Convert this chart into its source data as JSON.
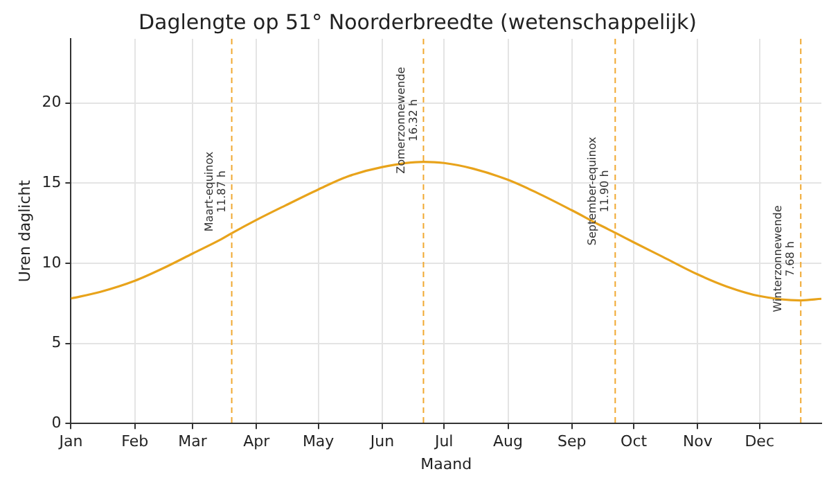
{
  "chart_data": {
    "type": "line",
    "title": "Daglengte op 51° Noorderbreedte (wetenschappelijk)",
    "xlabel": "Maand",
    "ylabel": "Uren daglicht",
    "x": [
      "--01-01",
      "--01-15",
      "--02-01",
      "--02-15",
      "--03-01",
      "--03-15",
      "--03-20",
      "--04-01",
      "--04-15",
      "--05-01",
      "--05-15",
      "--06-01",
      "--06-21",
      "--07-01",
      "--07-15",
      "--08-01",
      "--08-15",
      "--09-01",
      "--09-15",
      "--09-22",
      "--10-01",
      "--10-15",
      "--11-01",
      "--11-15",
      "--12-01",
      "--12-21",
      "--12-31"
    ],
    "series": [
      {
        "color": "#e8a31b",
        "values": [
          7.8,
          8.2,
          8.9,
          9.7,
          10.6,
          11.5,
          11.87,
          12.7,
          13.6,
          14.6,
          15.4,
          16.0,
          16.32,
          16.25,
          15.9,
          15.2,
          14.4,
          13.3,
          12.35,
          11.9,
          11.3,
          10.4,
          9.3,
          8.55,
          7.95,
          7.68,
          7.78
        ]
      }
    ],
    "xlim": [
      "--01-01",
      "--12-31"
    ],
    "xticks": [
      {
        "value": "--01-01",
        "label": "Jan"
      },
      {
        "value": "--02-01",
        "label": "Feb"
      },
      {
        "value": "--03-01",
        "label": "Mar"
      },
      {
        "value": "--04-01",
        "label": "Apr"
      },
      {
        "value": "--05-01",
        "label": "May"
      },
      {
        "value": "--06-01",
        "label": "Jun"
      },
      {
        "value": "--07-01",
        "label": "Jul"
      },
      {
        "value": "--08-01",
        "label": "Aug"
      },
      {
        "value": "--09-01",
        "label": "Sep"
      },
      {
        "value": "--10-01",
        "label": "Oct"
      },
      {
        "value": "--11-01",
        "label": "Nov"
      },
      {
        "value": "--12-01",
        "label": "Dec"
      }
    ],
    "ylim": [
      0,
      24
    ],
    "yticks": [
      0,
      5,
      10,
      15,
      20
    ],
    "ref_lines": [
      {
        "axis": "x",
        "value": "--03-20",
        "label": "Maart-equinox\n11.87 h",
        "color": "#f0a830",
        "line_style": "dashed"
      },
      {
        "axis": "x",
        "value": "--06-21",
        "label": "Zomerzonnewende\n16.32 h",
        "color": "#f0a830",
        "line_style": "dashed"
      },
      {
        "axis": "x",
        "value": "--09-22",
        "label": "September-equinox\n11.90 h",
        "color": "#f0a830",
        "line_style": "dashed"
      },
      {
        "axis": "x",
        "value": "--12-21",
        "label": "Winterzonnewende\n7.68 h",
        "color": "#f0a830",
        "line_style": "dashed"
      }
    ],
    "grid": true,
    "legend": false,
    "marker": "none",
    "line_style": "solid"
  }
}
